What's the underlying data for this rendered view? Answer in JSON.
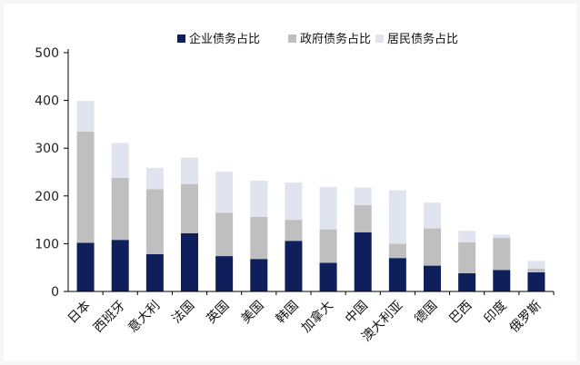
{
  "chart_data": {
    "type": "bar",
    "stacked": true,
    "categories": [
      "日本",
      "西班牙",
      "意大利",
      "法国",
      "英国",
      "美国",
      "韩国",
      "加拿大",
      "中国",
      "澳大利亚",
      "德国",
      "巴西",
      "印度",
      "俄罗斯"
    ],
    "series": [
      {
        "name": "企业债务占比",
        "color": "#0f1f5c",
        "values": [
          102,
          108,
          78,
          122,
          74,
          68,
          106,
          60,
          124,
          70,
          54,
          38,
          45,
          40
        ]
      },
      {
        "name": "政府债务占比",
        "color": "#bfbfbf",
        "values": [
          233,
          130,
          136,
          103,
          91,
          88,
          44,
          70,
          57,
          30,
          78,
          65,
          67,
          8
        ]
      },
      {
        "name": "居民债务占比",
        "color": "#dfe4ee",
        "values": [
          64,
          73,
          45,
          55,
          86,
          76,
          78,
          89,
          37,
          112,
          54,
          24,
          7,
          16
        ]
      }
    ],
    "ylim": [
      0,
      500
    ],
    "yticks": [
      0,
      100,
      200,
      300,
      400,
      500
    ],
    "grid": false,
    "legend_position": "top"
  }
}
